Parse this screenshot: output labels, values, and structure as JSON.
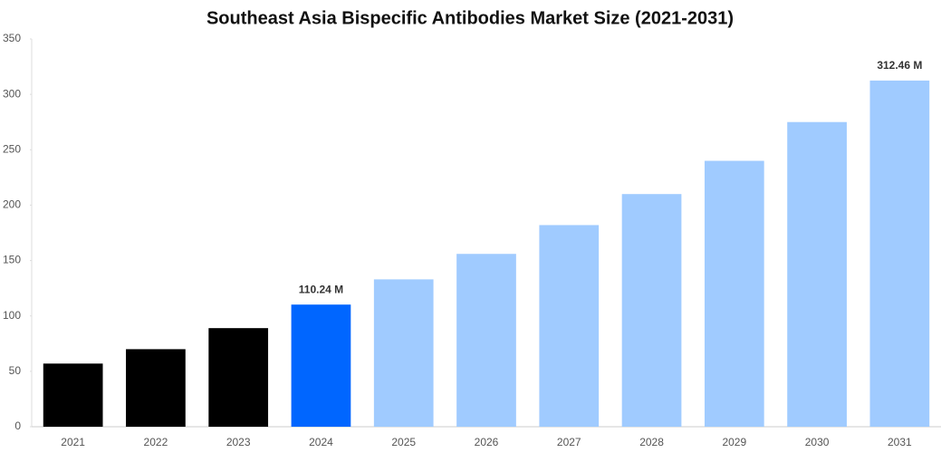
{
  "chart_data": {
    "type": "bar",
    "title": "Southeast Asia Bispecific Antibodies Market Size (2021-2031)",
    "categories": [
      "2021",
      "2022",
      "2023",
      "2024",
      "2025",
      "2026",
      "2027",
      "2028",
      "2029",
      "2030",
      "2031"
    ],
    "values": [
      57,
      70,
      89,
      110.24,
      133,
      156,
      182,
      210,
      240,
      275,
      312.46
    ],
    "value_labels": [
      null,
      null,
      null,
      "110.24 M",
      null,
      null,
      null,
      null,
      null,
      null,
      "312.46 M"
    ],
    "colors": [
      "#000000",
      "#000000",
      "#000000",
      "#0066ff",
      "#a0cbff",
      "#a0cbff",
      "#a0cbff",
      "#a0cbff",
      "#a0cbff",
      "#a0cbff",
      "#a0cbff"
    ],
    "ylim": [
      0,
      350
    ],
    "yticks": [
      0,
      50,
      100,
      150,
      200,
      250,
      300,
      350
    ],
    "grid": false
  }
}
